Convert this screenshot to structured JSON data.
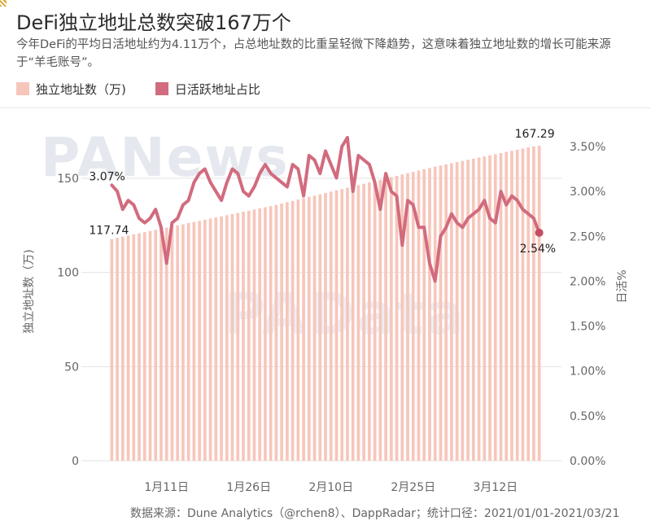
{
  "header": {
    "title": "DeFi独立地址总数突破167万个",
    "subtitle": "今年DeFi的平均日活地址约为4.11万个，占总地址数的比重呈轻微下降趋势，这意味着独立地址数的增长可能来源于“羊毛账号”。"
  },
  "legend": {
    "items": [
      {
        "label": "独立地址数（万)",
        "color": "#f7c6bb"
      },
      {
        "label": "日活跃地址占比",
        "color": "#d26b7e"
      }
    ]
  },
  "watermarks": [
    "PANews",
    "PAData"
  ],
  "source_text": "数据来源：Dune Analytics（@rchen8）、DappRadar；统计口径：2021/01/01-2021/03/21",
  "colors": {
    "bar": "#f7c6bb",
    "line": "#d26b7e",
    "grid": "#e3e3e3",
    "watermark": "#e5e8ef"
  },
  "chart_data": {
    "type": "bar+line",
    "x_start": "2021-01-01",
    "x_end": "2021-03-21",
    "xticks": [
      "1月11日",
      "1月26日",
      "2月10日",
      "2月25日",
      "3月12日"
    ],
    "y_left": {
      "label": "独立地址数（万)",
      "ticks": [
        "0",
        "50",
        "100",
        "150"
      ],
      "ylim": [
        0,
        180
      ]
    },
    "y_right": {
      "label": "日活%",
      "ticks": [
        "0.00%",
        "0.50%",
        "1.00%",
        "1.50%",
        "2.00%",
        "2.50%",
        "3.00%",
        "3.50%"
      ],
      "ylim": [
        0,
        3.8
      ]
    },
    "series": [
      {
        "name": "独立地址数（万)",
        "type": "bar",
        "values": [
          117.74,
          118.4,
          119.0,
          119.6,
          120.2,
          120.8,
          121.4,
          122.0,
          122.6,
          123.2,
          123.8,
          124.4,
          125.0,
          125.6,
          126.2,
          126.8,
          127.4,
          128.0,
          128.6,
          129.2,
          129.8,
          130.4,
          131.0,
          131.6,
          132.2,
          132.8,
          133.4,
          134.0,
          134.6,
          135.2,
          135.9,
          136.6,
          137.3,
          138.0,
          138.7,
          139.4,
          140.1,
          140.8,
          141.5,
          142.2,
          142.9,
          143.6,
          144.3,
          145.0,
          145.7,
          146.4,
          147.1,
          147.8,
          148.5,
          149.2,
          149.9,
          150.6,
          151.3,
          152.0,
          152.7,
          153.4,
          154.1,
          154.8,
          155.5,
          156.2,
          156.8,
          157.4,
          158.0,
          158.6,
          159.2,
          159.8,
          160.4,
          161.0,
          161.6,
          162.2,
          162.8,
          163.4,
          164.0,
          164.6,
          165.2,
          165.8,
          166.4,
          166.9,
          167.29
        ]
      },
      {
        "name": "日活跃地址占比",
        "type": "line",
        "values": [
          3.07,
          3.0,
          2.8,
          2.9,
          2.85,
          2.7,
          2.65,
          2.7,
          2.8,
          2.6,
          2.2,
          2.65,
          2.7,
          2.85,
          2.9,
          3.1,
          3.2,
          3.25,
          3.1,
          3.0,
          2.9,
          3.1,
          3.25,
          3.2,
          3.0,
          2.95,
          3.05,
          3.2,
          3.3,
          3.2,
          3.15,
          3.1,
          3.05,
          3.3,
          3.25,
          2.95,
          3.4,
          3.35,
          3.2,
          3.45,
          3.3,
          3.15,
          3.5,
          3.6,
          3.0,
          3.4,
          3.35,
          3.3,
          3.1,
          2.8,
          3.2,
          3.0,
          2.95,
          2.4,
          2.9,
          2.85,
          2.6,
          2.6,
          2.2,
          2.0,
          2.5,
          2.6,
          2.75,
          2.65,
          2.6,
          2.7,
          2.75,
          2.8,
          2.9,
          2.7,
          2.65,
          3.0,
          2.85,
          2.95,
          2.9,
          2.8,
          2.75,
          2.7,
          2.54
        ]
      }
    ],
    "annotations": [
      {
        "text": "3.07%",
        "series": "日活跃地址占比",
        "index": 0
      },
      {
        "text": "117.74",
        "series": "独立地址数（万)",
        "index": 0
      },
      {
        "text": "167.29",
        "series": "独立地址数（万)",
        "index": 78
      },
      {
        "text": "2.54%",
        "series": "日活跃地址占比",
        "index": 78
      }
    ]
  }
}
